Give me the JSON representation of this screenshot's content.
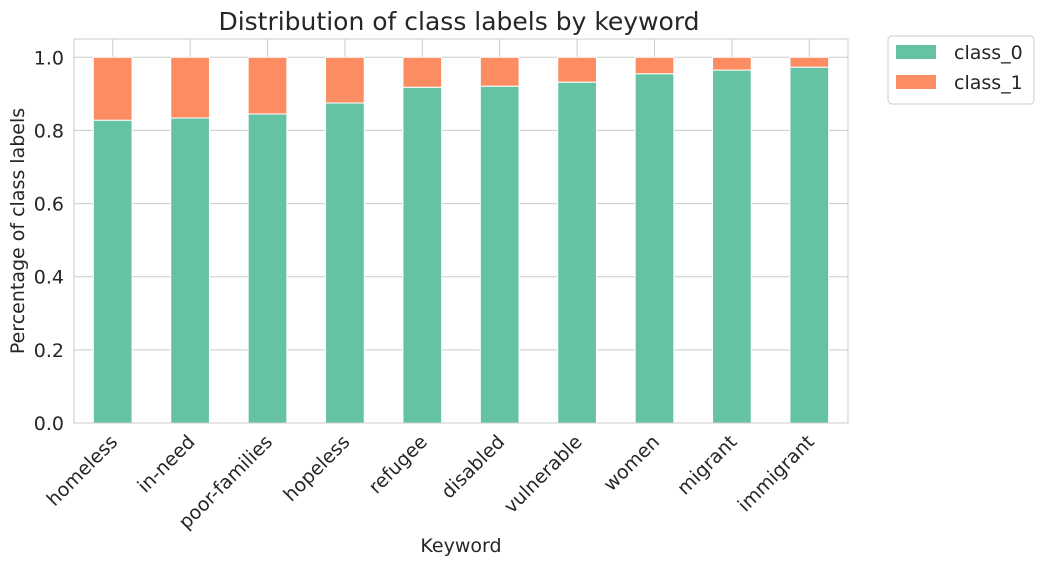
{
  "chart_data": {
    "type": "bar",
    "stacked": true,
    "title": "Distribution of class labels by keyword",
    "xlabel": "Keyword",
    "ylabel": "Percentage of class labels",
    "categories": [
      "homeless",
      "in-need",
      "poor-families",
      "hopeless",
      "refugee",
      "disabled",
      "vulnerable",
      "women",
      "migrant",
      "immigrant"
    ],
    "series": [
      {
        "name": "class_0",
        "color": "#66c2a5",
        "values": [
          0.828,
          0.834,
          0.845,
          0.875,
          0.918,
          0.921,
          0.932,
          0.955,
          0.965,
          0.973
        ]
      },
      {
        "name": "class_1",
        "color": "#fc8d62",
        "values": [
          0.172,
          0.166,
          0.155,
          0.125,
          0.082,
          0.079,
          0.068,
          0.045,
          0.035,
          0.027
        ]
      }
    ],
    "ylim": [
      0,
      1.05
    ],
    "yticks": [
      "0.0",
      "0.2",
      "0.4",
      "0.6",
      "0.8",
      "1.0"
    ],
    "grid": true,
    "legend_position": "outside-top-right"
  }
}
